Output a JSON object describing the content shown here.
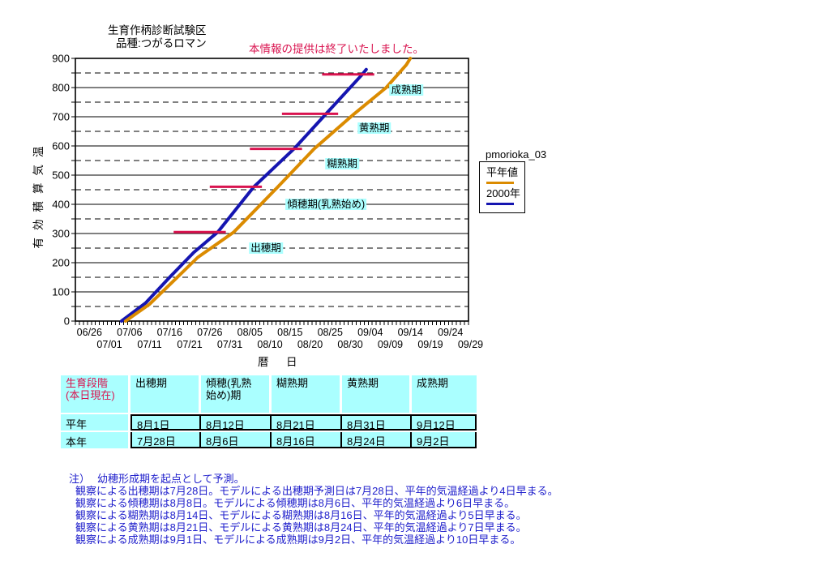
{
  "header": {
    "title_line1": "生育作柄診断試験区",
    "title_line2": "品種:つがるロマン",
    "notice": "本情報の提供は終了いたしました。"
  },
  "legend": {
    "title": "pmorioka_03",
    "items": [
      {
        "label": "平年値",
        "color": "#DB8B00"
      },
      {
        "label": "2000年",
        "color": "#1515B0"
      }
    ]
  },
  "chart_data": {
    "type": "line",
    "title": "",
    "xlabel": "暦　日",
    "ylabel": "有効積算気温",
    "ylim": [
      0,
      900
    ],
    "x_range": [
      "06/23",
      "09/29"
    ],
    "grid": "solid lines every 100, dashed lines every 50",
    "legend_position": "right",
    "y_major_ticks": [
      0,
      100,
      200,
      300,
      400,
      500,
      600,
      700,
      800,
      900
    ],
    "x_labels_row1": [
      "06/26",
      "07/06",
      "07/16",
      "07/26",
      "08/05",
      "08/15",
      "08/25",
      "09/04",
      "09/14",
      "09/24"
    ],
    "x_labels_row2": [
      "07/01",
      "07/11",
      "07/21",
      "07/31",
      "08/10",
      "08/20",
      "08/30",
      "09/09",
      "09/19",
      "09/29"
    ],
    "series": [
      {
        "name": "平年値",
        "color": "#DB8B00",
        "points": [
          [
            "07/05",
            0
          ],
          [
            "07/11",
            58
          ],
          [
            "07/17",
            138
          ],
          [
            "07/23",
            218
          ],
          [
            "08/01",
            305
          ],
          [
            "08/12",
            460
          ],
          [
            "08/21",
            590
          ],
          [
            "08/31",
            710
          ],
          [
            "09/08",
            800
          ],
          [
            "09/13",
            878
          ],
          [
            "09/14",
            900
          ]
        ]
      },
      {
        "name": "2000年",
        "color": "#1515B0",
        "points": [
          [
            "07/04",
            0
          ],
          [
            "07/10",
            62
          ],
          [
            "07/16",
            150
          ],
          [
            "07/22",
            235
          ],
          [
            "07/28",
            305
          ],
          [
            "08/06",
            460
          ],
          [
            "08/16",
            590
          ],
          [
            "08/24",
            710
          ],
          [
            "09/02",
            845
          ],
          [
            "09/03",
            862
          ]
        ]
      }
    ],
    "threshold_lines": [
      {
        "value": 305,
        "from": "07/17",
        "to": "07/30",
        "color": "#D9134F"
      },
      {
        "value": 460,
        "from": "07/26",
        "to": "08/08",
        "color": "#D9134F"
      },
      {
        "value": 590,
        "from": "08/05",
        "to": "08/18",
        "color": "#D9134F"
      },
      {
        "value": 710,
        "from": "08/13",
        "to": "08/27",
        "color": "#D9134F"
      },
      {
        "value": 845,
        "from": "08/23",
        "to": "09/05",
        "color": "#D9134F"
      }
    ],
    "stage_labels": [
      {
        "text": "出穂期",
        "date": "08/09",
        "value": 250
      },
      {
        "text": "傾穂期(乳熟始め)",
        "date": "08/24",
        "value": 400
      },
      {
        "text": "糊熟期",
        "date": "08/28",
        "value": 540
      },
      {
        "text": "黄熟期",
        "date": "09/05",
        "value": 660
      },
      {
        "text": "成熟期",
        "date": "09/13",
        "value": 792
      }
    ]
  },
  "table": {
    "header": [
      {
        "line1": "生育段階",
        "line2": "(本日現在)"
      },
      {
        "line1": "出穂期",
        "line2": ""
      },
      {
        "line1": "傾穂(乳熟",
        "line2": "始め)期"
      },
      {
        "line1": "糊熟期",
        "line2": ""
      },
      {
        "line1": "黄熟期",
        "line2": ""
      },
      {
        "line1": "成熟期",
        "line2": ""
      }
    ],
    "rows": [
      {
        "label": "平年",
        "cells": [
          "8月1日",
          "8月12日",
          "8月21日",
          "8月31日",
          "9月12日"
        ]
      },
      {
        "label": "本年",
        "cells": [
          "7月28日",
          "8月6日",
          "8月16日",
          "8月24日",
          "9月2日"
        ]
      }
    ]
  },
  "notes": {
    "prefix": "注）",
    "lines": [
      "幼穂形成期を起点として予測。",
      "観察による出穂期は7月28日。モデルによる出穂期予測日は7月28日、平年的気温経過より4日早まる。",
      "観察による傾穂期は8月8日。モデルによる傾穂期は8月6日、平年的気温経過より6日早まる。",
      "観察による糊熟期は8月14日、モデルによる糊熟期は8月16日、平年的気温経過より5日早まる。",
      "観察による黄熟期は8月21日、モデルによる黄熟期は8月24日、平年的気温経過より7日早まる。",
      "観察による成熟期は9月1日、モデルによる成熟期は9月2日、平年的気温経過より10日早まる。"
    ]
  }
}
